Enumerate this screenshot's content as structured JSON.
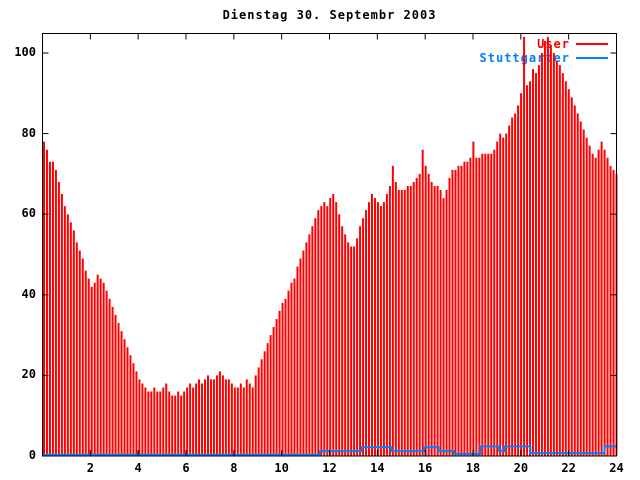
{
  "window": {
    "background": "#ffffff"
  },
  "colors": {
    "user_series": "#ff0000",
    "stuttgarter_series": "#0080ff",
    "axis": "#000000",
    "background": "#ffffff"
  },
  "legend": {
    "position": "top-right",
    "entries": [
      {
        "label": "User",
        "color": "#ff0000"
      },
      {
        "label": "Stuttgarter",
        "color": "#0080ff"
      }
    ]
  },
  "chart_data": {
    "type": "bar",
    "style": "gnuplot-impulses-with-step-line",
    "title": "Dienstag 30. Septembr 2003",
    "xlabel": "",
    "ylabel": "",
    "xlim": [
      0,
      24
    ],
    "ylim": [
      0,
      105
    ],
    "x_ticks": [
      2,
      4,
      6,
      8,
      10,
      12,
      14,
      16,
      18,
      20,
      22,
      24
    ],
    "y_ticks": [
      0,
      20,
      40,
      60,
      80,
      100
    ],
    "grid": false,
    "legend_position": "top-right",
    "x_step_hours": 0.125,
    "series": [
      {
        "name": "User",
        "render": "impulses",
        "color": "#ff0000",
        "values": [
          78,
          76,
          73,
          73,
          71,
          68,
          65,
          62,
          60,
          58,
          56,
          53,
          51,
          49,
          46,
          44,
          42,
          43,
          45,
          44,
          43,
          41,
          39,
          37,
          35,
          33,
          31,
          29,
          27,
          25,
          23,
          21,
          19,
          18,
          17,
          16,
          16,
          17,
          16,
          16,
          17,
          18,
          16,
          15,
          15,
          16,
          15,
          16,
          17,
          18,
          17,
          18,
          19,
          18,
          19,
          20,
          19,
          19,
          20,
          21,
          20,
          19,
          19,
          18,
          17,
          17,
          18,
          17,
          19,
          18,
          17,
          20,
          22,
          24,
          26,
          28,
          30,
          32,
          34,
          36,
          38,
          39,
          41,
          43,
          44,
          47,
          49,
          51,
          53,
          55,
          57,
          59,
          61,
          62,
          63,
          62,
          64,
          65,
          63,
          60,
          57,
          55,
          53,
          52,
          52,
          54,
          57,
          59,
          61,
          63,
          65,
          64,
          63,
          62,
          63,
          65,
          67,
          72,
          68,
          66,
          66,
          66,
          67,
          67,
          68,
          69,
          70,
          76,
          72,
          70,
          68,
          67,
          67,
          66,
          64,
          66,
          69,
          71,
          71,
          72,
          72,
          73,
          73,
          74,
          78,
          74,
          74,
          75,
          75,
          75,
          75,
          76,
          78,
          80,
          79,
          80,
          82,
          84,
          85,
          87,
          90,
          104,
          92,
          93,
          96,
          95,
          97,
          100,
          103,
          104,
          102,
          100,
          98,
          97,
          95,
          93,
          91,
          89,
          87,
          85,
          83,
          81,
          79,
          77,
          75,
          74,
          76,
          78,
          76,
          74,
          72,
          71,
          70
        ]
      },
      {
        "name": "Stuttgarter",
        "render": "step",
        "color": "#0080ff",
        "points": [
          [
            0,
            0.3
          ],
          [
            11.6,
            1.2
          ],
          [
            13.35,
            2.2
          ],
          [
            14.6,
            1.2
          ],
          [
            15.95,
            2.2
          ],
          [
            16.55,
            1.2
          ],
          [
            17.2,
            0.5
          ],
          [
            18.3,
            2.4
          ],
          [
            19.1,
            1.2
          ],
          [
            19.3,
            2.4
          ],
          [
            20.4,
            0.7
          ],
          [
            23.5,
            2.4
          ]
        ]
      }
    ]
  }
}
